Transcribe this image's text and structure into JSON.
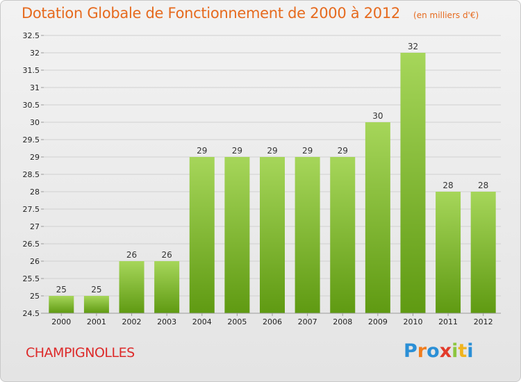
{
  "header": {
    "title": "Dotation Globale de Fonctionnement de 2000 à 2012",
    "subtitle": "(en milliers d'€)"
  },
  "footer": {
    "commune": "CHAMPIGNOLLES",
    "logo": "Proxiti"
  },
  "colors": {
    "title": "#e66a1e",
    "commune": "#dd2a2a",
    "bar_light": "#a6d65a",
    "bar_dark": "#5f9a12"
  },
  "chart_data": {
    "type": "bar",
    "title": "Dotation Globale de Fonctionnement de 2000 à 2012",
    "subtitle": "(en milliers d'€)",
    "categories": [
      "2000",
      "2001",
      "2002",
      "2003",
      "2004",
      "2005",
      "2006",
      "2007",
      "2008",
      "2009",
      "2010",
      "2011",
      "2012"
    ],
    "values": [
      25,
      25,
      26,
      26,
      29,
      29,
      29,
      29,
      29,
      30,
      32,
      28,
      28
    ],
    "ylim": [
      24.5,
      32.5
    ],
    "yticks": [
      "24.5",
      "25",
      "25.5",
      "26",
      "26.5",
      "27",
      "27.5",
      "28",
      "28.5",
      "29",
      "29.5",
      "30",
      "30.5",
      "31",
      "31.5",
      "32",
      "32.5"
    ],
    "grid": true,
    "xlabel": "",
    "ylabel": ""
  }
}
